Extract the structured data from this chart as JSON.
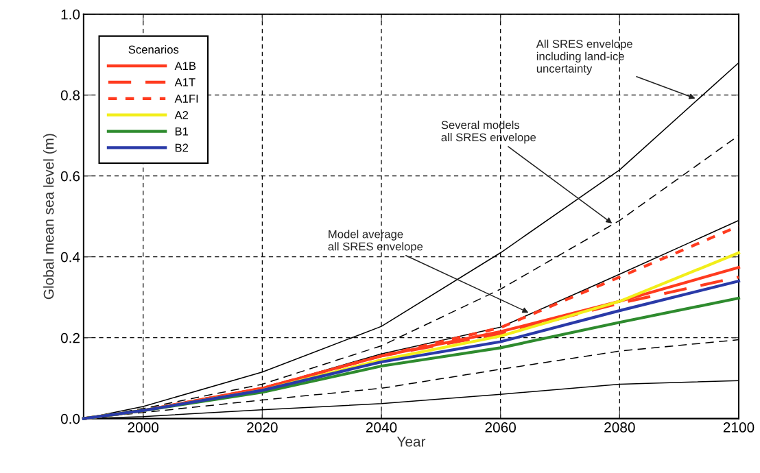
{
  "chart_data": {
    "type": "line",
    "xlabel": "Year",
    "ylabel": "Global mean sea level (m)",
    "legend_title": "Scenarios",
    "legend": "top left",
    "grid": true,
    "x": [
      1990,
      2000,
      2020,
      2040,
      2060,
      2080,
      2100
    ],
    "xlim": [
      1990,
      2100
    ],
    "xticks": [
      2000,
      2020,
      2040,
      2060,
      2080,
      2100
    ],
    "ylim": [
      0,
      1
    ],
    "yticks": [
      {
        "value": 0,
        "label": "0.0"
      },
      {
        "value": 0.2,
        "label": "0.2"
      },
      {
        "value": 0.4,
        "label": "0.4"
      },
      {
        "value": 0.6,
        "label": "0.6"
      },
      {
        "value": 0.8,
        "label": "0.8"
      },
      {
        "value": 1,
        "label": "1.0"
      }
    ],
    "series": [
      {
        "color": "#000000",
        "line_style": "solid",
        "values": [
          0,
          0.03,
          0.115,
          0.228,
          0.41,
          0.615,
          0.88
        ]
      },
      {
        "color": "#000000",
        "line_style": "solid",
        "values": [
          0,
          0.005,
          0.022,
          0.037,
          0.06,
          0.085,
          0.094
        ]
      },
      {
        "color": "#000000",
        "line_style": "dashed",
        "values": [
          0,
          0.025,
          0.085,
          0.18,
          0.32,
          0.49,
          0.7
        ]
      },
      {
        "color": "#000000",
        "line_style": "dashed",
        "values": [
          0,
          0.015,
          0.046,
          0.075,
          0.122,
          0.167,
          0.195
        ]
      },
      {
        "color": "#000000",
        "line_style": "solid",
        "values": [
          0,
          0.022,
          0.075,
          0.16,
          0.226,
          0.357,
          0.49
        ]
      },
      {
        "name": "A1B",
        "color": "#ff3b1f",
        "line_style": "solid",
        "values": [
          0,
          0.02,
          0.075,
          0.155,
          0.215,
          0.29,
          0.374
        ]
      },
      {
        "name": "A1T",
        "color": "#ff3b1f",
        "line_style": "dashed",
        "values": [
          0,
          0.02,
          0.075,
          0.155,
          0.21,
          0.285,
          0.35
        ]
      },
      {
        "name": "A1FI",
        "color": "#ff3b1f",
        "line_style": "dotted",
        "values": [
          0,
          0.02,
          0.075,
          0.155,
          0.225,
          0.35,
          0.476
        ]
      },
      {
        "name": "A2",
        "color": "#f2ee1a",
        "line_style": "solid",
        "values": [
          0,
          0.02,
          0.07,
          0.145,
          0.204,
          0.29,
          0.41
        ]
      },
      {
        "name": "B1",
        "color": "#2e8b2e",
        "line_style": "solid",
        "values": [
          0,
          0.02,
          0.065,
          0.13,
          0.175,
          0.238,
          0.298
        ]
      },
      {
        "name": "B2",
        "color": "#2a3aa8",
        "line_style": "solid",
        "values": [
          0,
          0.02,
          0.07,
          0.14,
          0.19,
          0.267,
          0.34
        ]
      }
    ],
    "annotations": [
      {
        "text": "All SRES envelope\nincluding land-ice\nuncertainty",
        "x": 2093,
        "y": 0.79
      },
      {
        "text": "Several models\nall SRES envelope",
        "x": 2079,
        "y": 0.48
      },
      {
        "text": "Model average\nall SRES envelope",
        "x": 2065,
        "y": 0.26
      }
    ]
  }
}
